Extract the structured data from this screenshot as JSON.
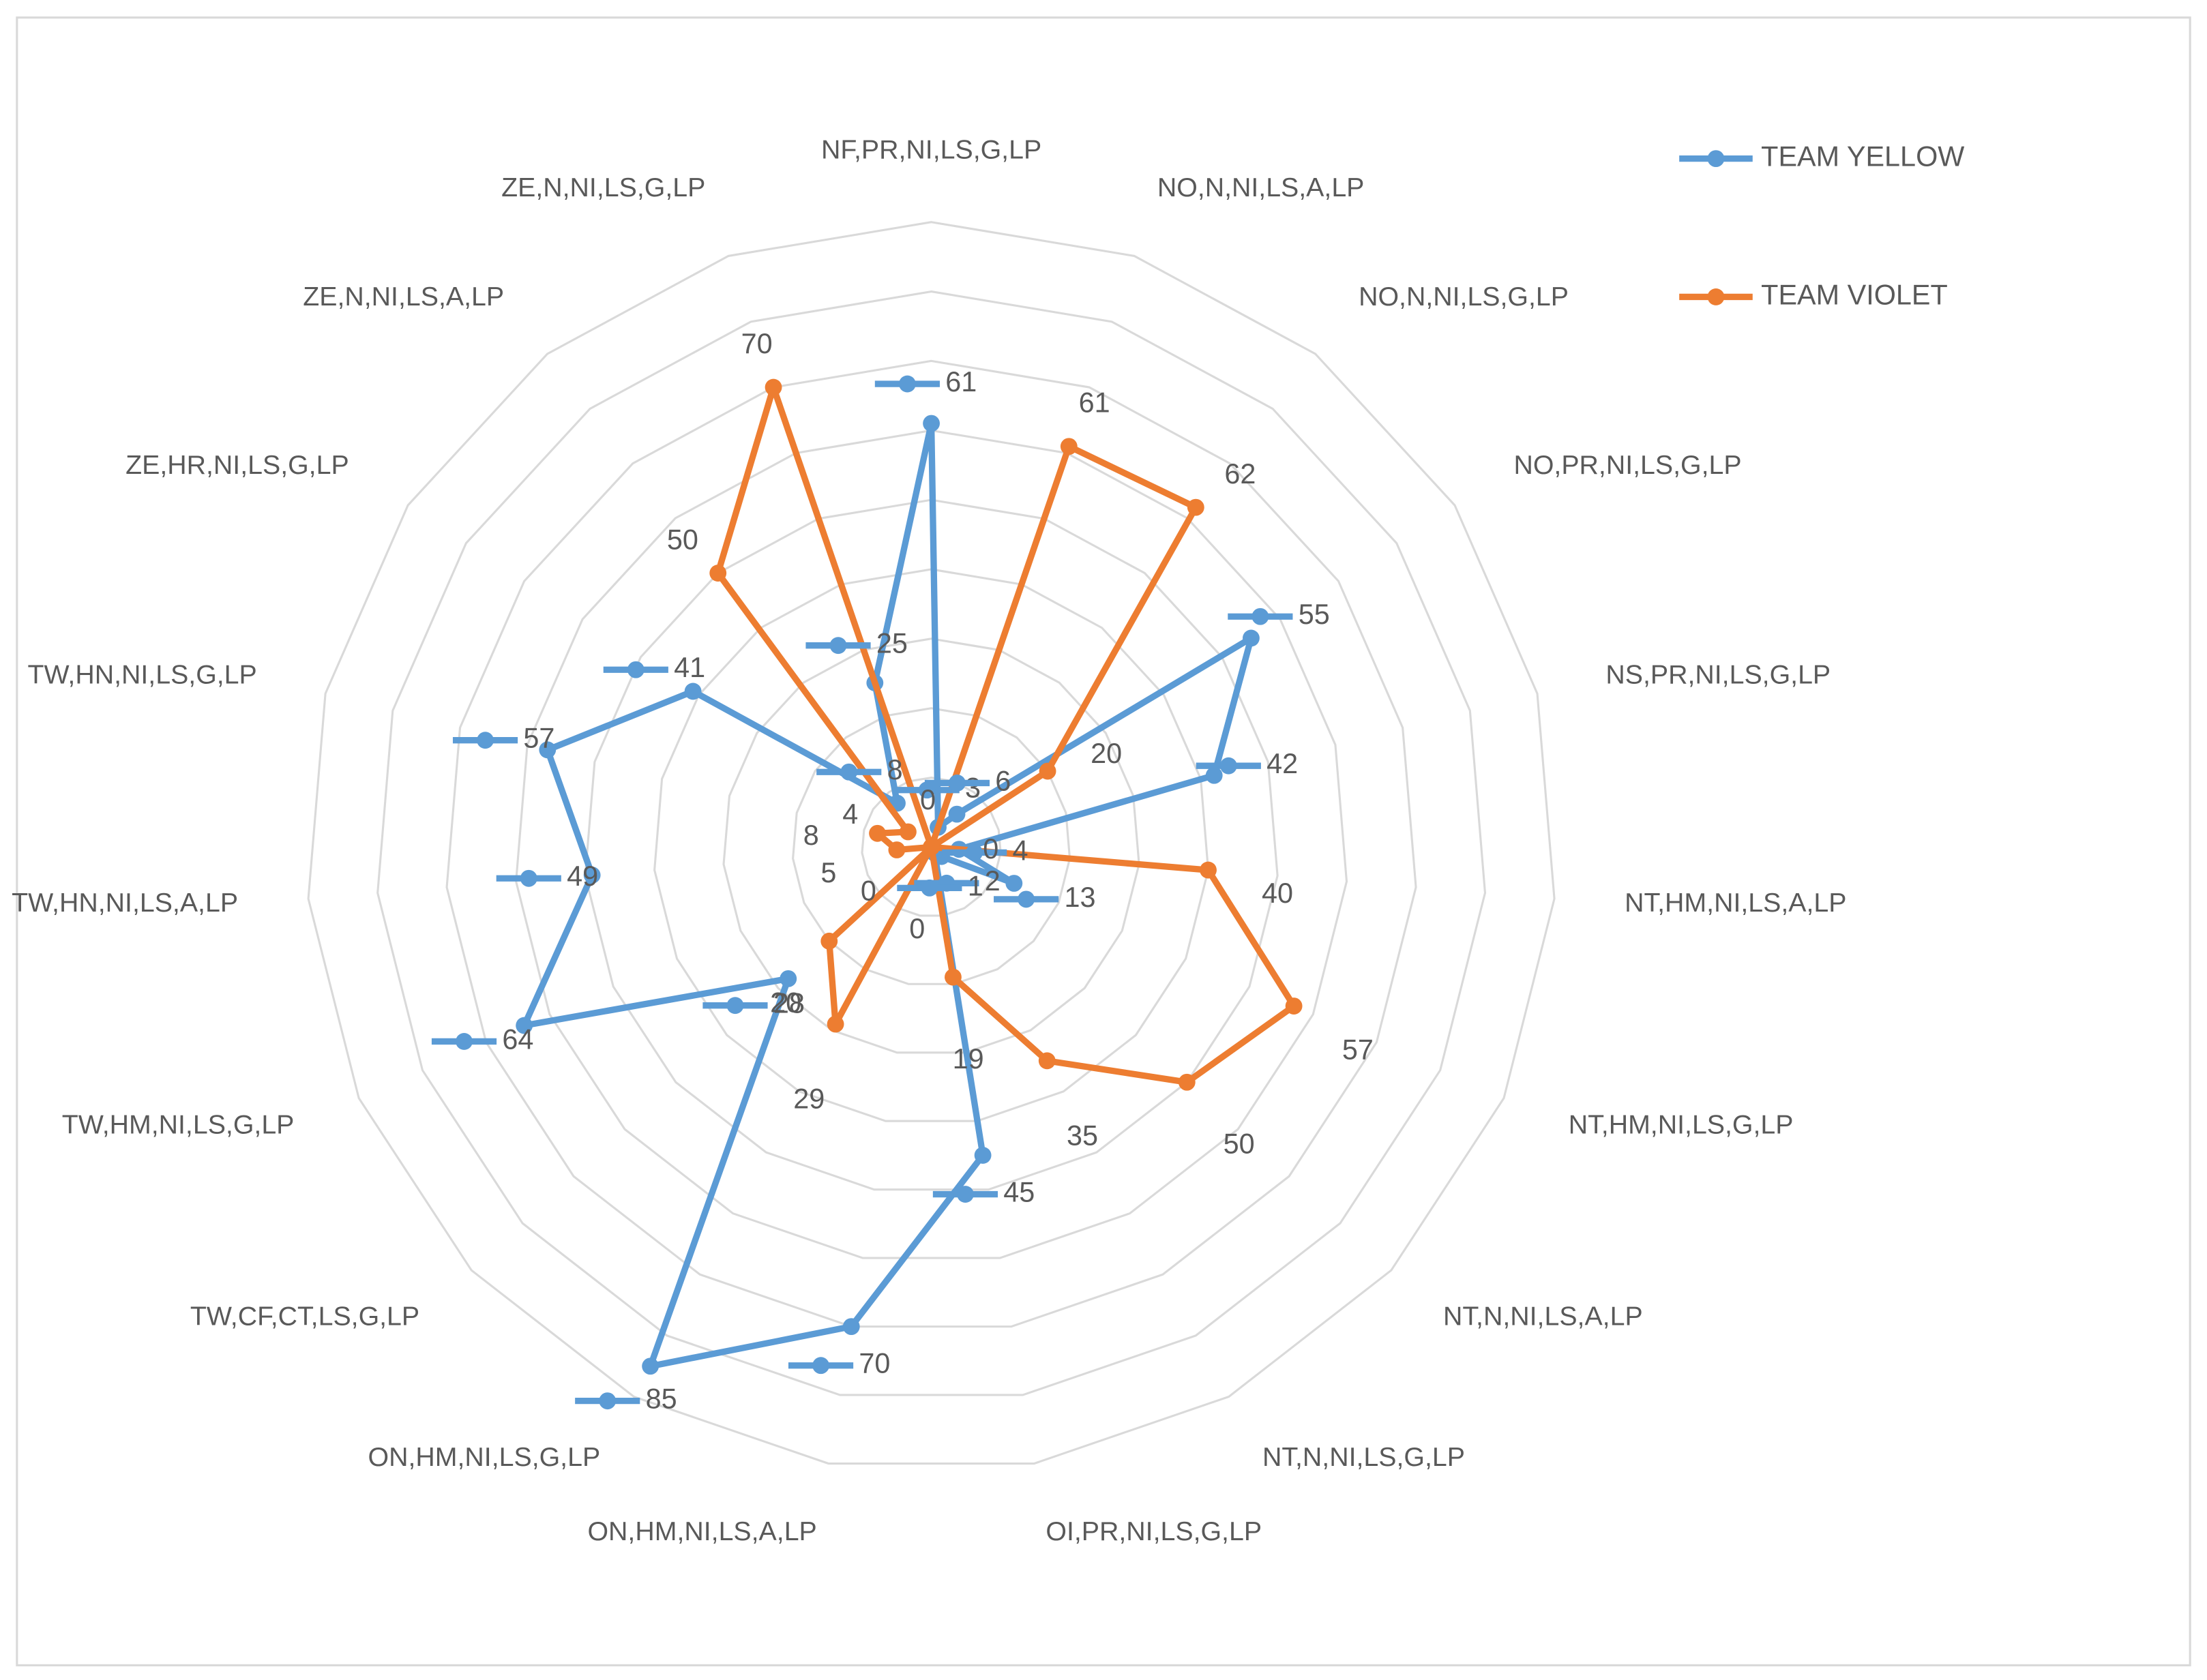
{
  "chart_data": {
    "type": "radar",
    "categories": [
      "NF,PR,NI,LS,G,LP",
      "NO,N,NI,LS,A,LP",
      "NO,N,NI,LS,G,LP",
      "NO,PR,NI,LS,G,LP",
      "NS,PR,NI,LS,G,LP",
      "NT,HM,NI,LS,A,LP",
      "NT,HM,NI,LS,G,LP",
      "NT,N,NI,LS,A,LP",
      "NT,N,NI,LS,G,LP",
      "OI,PR,NI,LS,G,LP",
      "ON,HM,NI,LS,A,LP",
      "ON,HM,NI,LS,G,LP",
      "TW,CF,CT,LS,G,LP",
      "TW,HM,NI,LS,G,LP",
      "TW,HN,NI,LS,A,LP",
      "TW,HN,NI,LS,G,LP",
      "ZE,HR,NI,LS,G,LP",
      "ZE,N,NI,LS,A,LP",
      "ZE,N,NI,LS,G,LP"
    ],
    "series": [
      {
        "name": "TEAM YELLOW",
        "color": "#5b9bd5",
        "values": [
          61,
          3,
          6,
          55,
          42,
          4,
          13,
          2,
          1,
          45,
          70,
          85,
          28,
          64,
          49,
          57,
          41,
          8,
          25
        ]
      },
      {
        "name": "TEAM VIOLET",
        "color": "#ed7d31",
        "values": [
          0,
          61,
          62,
          20,
          0,
          40,
          57,
          50,
          35,
          19,
          0,
          29,
          20,
          0,
          5,
          8,
          4,
          50,
          70
        ]
      }
    ],
    "ylim": [
      0,
      90
    ],
    "yticks": [
      0,
      10,
      20,
      30,
      40,
      50,
      60,
      70,
      80,
      90
    ],
    "grid": true,
    "legend": "top-right"
  }
}
